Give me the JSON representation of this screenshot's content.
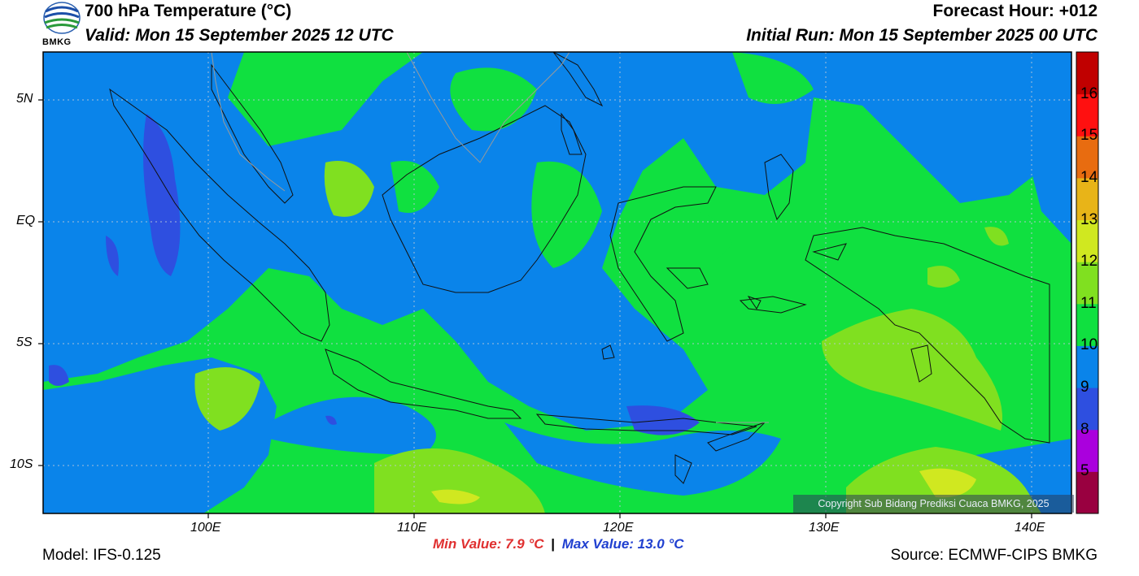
{
  "header": {
    "title": "700 hPa Temperature (°C)",
    "valid": "Valid: Mon 15 September 2025 12 UTC",
    "forecast_hour": "Forecast Hour: +012",
    "initial_run": "Initial Run: Mon 15 September 2025 00 UTC",
    "logo_text": "BMKG"
  },
  "map": {
    "lon_range": [
      92,
      142
    ],
    "lat_range": [
      -12,
      7
    ],
    "lat_ticks": [
      {
        "value": 5,
        "label": "5N"
      },
      {
        "value": 0,
        "label": "EQ"
      },
      {
        "value": -5,
        "label": "5S"
      },
      {
        "value": -10,
        "label": "10S"
      }
    ],
    "lon_ticks": [
      {
        "value": 100,
        "label": "100E"
      },
      {
        "value": 110,
        "label": "110E"
      },
      {
        "value": 120,
        "label": "120E"
      },
      {
        "value": 130,
        "label": "130E"
      },
      {
        "value": 140,
        "label": "140E"
      }
    ],
    "copyright": "Copyright Sub Bidang Prediksi Cuaca BMKG, 2025"
  },
  "colorbar": {
    "segments": [
      {
        "color": "#990040",
        "label": "5"
      },
      {
        "color": "#aa00dd",
        "label": "8"
      },
      {
        "color": "#2e4fe0",
        "label": "9"
      },
      {
        "color": "#0a84ea",
        "label": "10"
      },
      {
        "color": "#10e040",
        "label": "11"
      },
      {
        "color": "#80e020",
        "label": "12"
      },
      {
        "color": "#d0e820",
        "label": "13"
      },
      {
        "color": "#e8b418",
        "label": "14"
      },
      {
        "color": "#e86c10",
        "label": "15"
      },
      {
        "color": "#ff1010",
        "label": "16"
      },
      {
        "color": "#c00000",
        "label": ""
      }
    ]
  },
  "footer": {
    "model": "Model: IFS-0.125",
    "min_value": "Min Value: 7.9 °C",
    "separator": "|",
    "max_value": "Max Value: 13.0 °C",
    "source": "Source: ECMWF-CIPS BMKG"
  }
}
